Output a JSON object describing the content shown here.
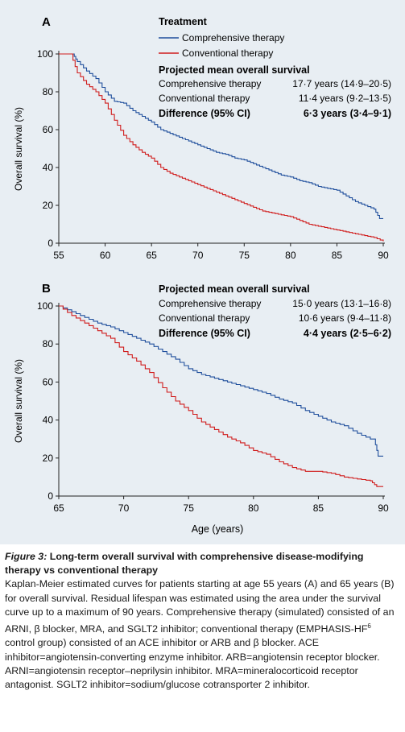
{
  "colors": {
    "comprehensive": "#1f4e9c",
    "conventional": "#d01c1c",
    "panel_bg": "#e8eef3"
  },
  "panels": {
    "a": {
      "letter": "A",
      "legend_title": "Treatment",
      "legend": [
        "Comprehensive therapy",
        "Conventional therapy"
      ],
      "table_title": "Projected mean overall survival",
      "rows": [
        {
          "label": "Comprehensive therapy",
          "value": "17·7 years (14·9–20·5)"
        },
        {
          "label": "Conventional therapy",
          "value": "11·4 years (9·2–13·5)"
        },
        {
          "label": "Difference (95% CI)",
          "value": "6·3 years (3·4–9·1)"
        }
      ],
      "ylabel": "Overall survival (%)",
      "xticks": [
        "55",
        "60",
        "65",
        "70",
        "75",
        "80",
        "85",
        "90"
      ],
      "yticks": [
        "0",
        "20",
        "40",
        "60",
        "80",
        "100"
      ]
    },
    "b": {
      "letter": "B",
      "table_title": "Projected mean overall survival",
      "rows": [
        {
          "label": "Comprehensive therapy",
          "value": "15·0 years (13·1–16·8)"
        },
        {
          "label": "Conventional therapy",
          "value": "10·6 years (9·4–11·8)"
        },
        {
          "label": "Difference (95% CI)",
          "value": "4·4 years (2·5–6·2)"
        }
      ],
      "ylabel": "Overall survival (%)",
      "xlabel": "Age (years)",
      "xticks": [
        "65",
        "70",
        "75",
        "80",
        "85",
        "90"
      ],
      "yticks": [
        "0",
        "20",
        "40",
        "60",
        "80",
        "100"
      ]
    }
  },
  "chart_data": [
    {
      "type": "line",
      "xlim": [
        55,
        90
      ],
      "ylim": [
        0,
        100
      ],
      "series": [
        {
          "name": "Comprehensive therapy",
          "x": [
            55,
            56.5,
            57,
            58,
            59,
            60,
            61,
            62,
            63,
            64,
            65,
            66,
            67,
            68,
            69,
            70,
            71,
            72,
            73,
            74,
            75,
            76,
            77,
            78,
            79,
            80,
            81,
            82,
            83,
            84,
            85,
            86,
            87,
            88,
            89,
            89.6,
            90
          ],
          "y": [
            100,
            100,
            96,
            91,
            87,
            80,
            75,
            74,
            70,
            67,
            64,
            60,
            58,
            56,
            54,
            52,
            50,
            48,
            47,
            45,
            44,
            42,
            40,
            38,
            36,
            35,
            33,
            32,
            30,
            29,
            28,
            25,
            22,
            20,
            18,
            13,
            13
          ]
        },
        {
          "name": "Conventional therapy",
          "x": [
            55,
            56.3,
            57,
            58,
            59,
            60,
            61,
            62,
            63,
            64,
            65,
            66,
            67,
            68,
            69,
            70,
            71,
            72,
            73,
            74,
            75,
            76,
            77,
            78,
            79,
            80,
            81,
            82,
            83,
            84,
            85,
            86,
            87,
            88,
            89,
            90
          ],
          "y": [
            100,
            100,
            90,
            84,
            80,
            74,
            65,
            57,
            52,
            48,
            45,
            40,
            37,
            35,
            33,
            31,
            29,
            27,
            25,
            23,
            21,
            19,
            17,
            16,
            15,
            14,
            12,
            10,
            9,
            8,
            7,
            6,
            5,
            4,
            3,
            1
          ]
        }
      ]
    },
    {
      "type": "line",
      "xlim": [
        65,
        90
      ],
      "ylim": [
        0,
        100
      ],
      "xlabel": "Age (years)",
      "series": [
        {
          "name": "Comprehensive therapy",
          "x": [
            65,
            66,
            67,
            68,
            69,
            70,
            71,
            72,
            73,
            74,
            75,
            76,
            77,
            78,
            79,
            80,
            81,
            82,
            83,
            84,
            85,
            86,
            87,
            88,
            89,
            89.3,
            89.6,
            90
          ],
          "y": [
            100,
            97,
            94,
            91,
            89,
            86,
            83,
            80,
            76,
            72,
            67,
            64,
            62,
            60,
            58,
            56,
            54,
            51,
            49,
            45,
            42,
            39,
            37,
            33,
            30,
            30,
            21,
            21
          ]
        },
        {
          "name": "Conventional therapy",
          "x": [
            65,
            66,
            67,
            68,
            69,
            70,
            71,
            72,
            73,
            74,
            75,
            76,
            77,
            78,
            79,
            80,
            81,
            82,
            83,
            84,
            85,
            86,
            87,
            88,
            89,
            89.5,
            90
          ],
          "y": [
            100,
            95,
            91,
            87,
            83,
            76,
            71,
            65,
            57,
            50,
            45,
            39,
            35,
            31,
            28,
            24,
            22,
            18,
            15,
            13,
            13,
            12,
            10,
            9,
            8,
            5,
            5
          ]
        }
      ]
    }
  ],
  "caption": {
    "label": "Figure 3:",
    "title": "Long-term overall survival with comprehensive disease-modifying therapy vs conventional therapy",
    "text_before_sup": "Kaplan-Meier estimated curves for patients starting at age 55 years (A) and 65 years (B) for overall survival. Residual lifespan was estimated using the area under the survival curve up to a maximum of 90 years. Comprehensive therapy (simulated) consisted of an ARNI, β blocker, MRA, and SGLT2 inhibitor; conventional therapy (EMPHASIS-HF",
    "sup": "6",
    "text_after_sup": " control group) consisted of an ACE inhibitor or ARB and β blocker. ACE inhibitor=angiotensin-converting enzyme inhibitor. ARB=angiotensin receptor blocker. ARNI=angiotensin receptor–neprilysin inhibitor. MRA=mineralocorticoid receptor antagonist. SGLT2 inhibitor=sodium/glucose cotransporter 2 inhibitor."
  }
}
